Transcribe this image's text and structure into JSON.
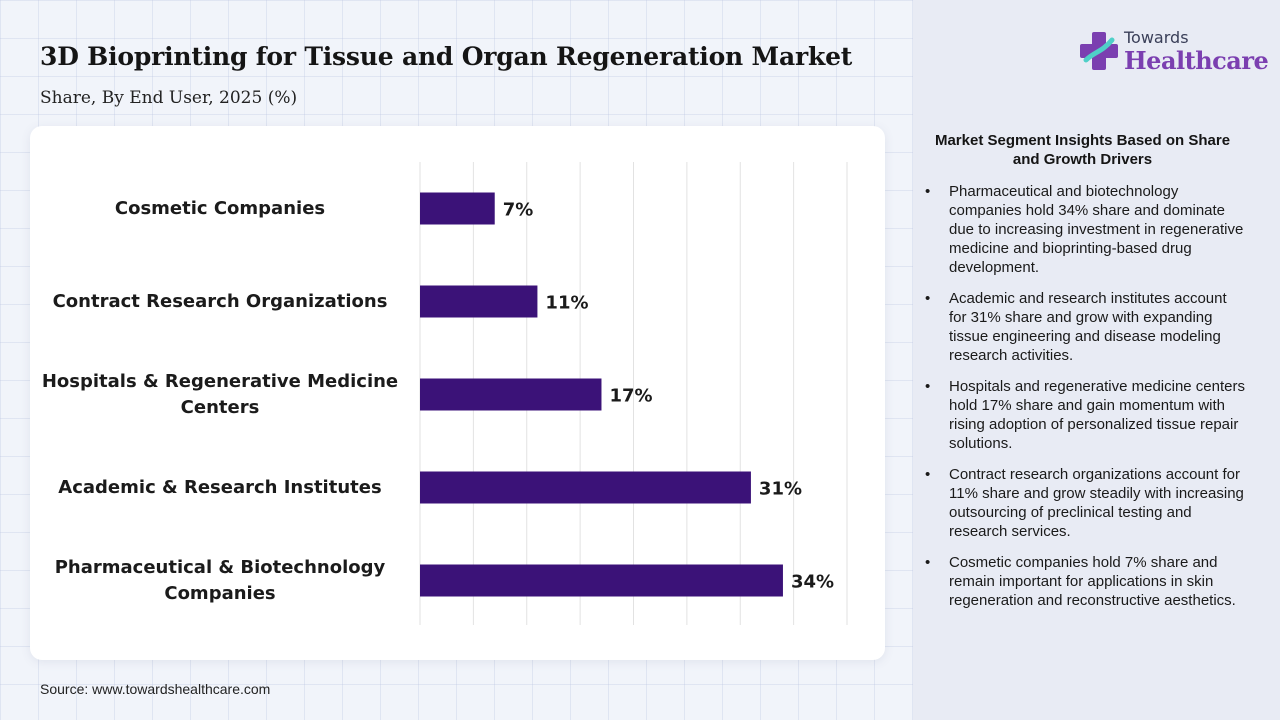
{
  "header": {
    "title": "3D Bioprinting for Tissue and Organ Regeneration Market",
    "subtitle": "Share, By End User, 2025 (%)"
  },
  "brand": {
    "line1": "Towards",
    "line2": "Healthcare",
    "icon": "plus-cross-icon"
  },
  "chart_data": {
    "type": "bar",
    "orientation": "horizontal",
    "title": "3D Bioprinting for Tissue and Organ Regeneration Market",
    "subtitle": "Share, By End User, 2025 (%)",
    "categories": [
      "Cosmetic Companies",
      "Contract Research Organizations",
      "Hospitals & Regenerative Medicine Centers",
      "Academic & Research Institutes",
      "Pharmaceutical & Biotechnology Companies"
    ],
    "category_lines": [
      [
        "Cosmetic Companies"
      ],
      [
        "Contract Research Organizations"
      ],
      [
        "Hospitals & Regenerative Medicine",
        "Centers"
      ],
      [
        "Academic & Research Institutes"
      ],
      [
        "Pharmaceutical & Biotechnology",
        "Companies"
      ]
    ],
    "values": [
      7,
      11,
      17,
      31,
      34
    ],
    "value_labels": [
      "7%",
      "11%",
      "17%",
      "31%",
      "34%"
    ],
    "xlim": [
      0,
      40
    ],
    "grid": true,
    "bar_color": "#3b1278"
  },
  "insights": {
    "title": "Market Segment Insights Based on Share and Growth Drivers",
    "bullet": "•",
    "items": [
      "Pharmaceutical and biotechnology companies hold 34% share and dominate due to increasing investment in regenerative medicine and bioprinting-based drug development.",
      "Academic and research institutes account for 31% share and grow with expanding tissue engineering and disease modeling research activities.",
      "Hospitals and regenerative medicine centers hold 17% share and gain momentum with rising adoption of personalized tissue repair solutions.",
      "Contract research organizations account for 11% share and grow steadily with increasing outsourcing of preclinical testing and research services.",
      "Cosmetic companies hold 7% share and remain important for applications in skin regeneration and reconstructive aesthetics."
    ]
  },
  "footer": {
    "source": "Source: www.towardshealthcare.com"
  }
}
